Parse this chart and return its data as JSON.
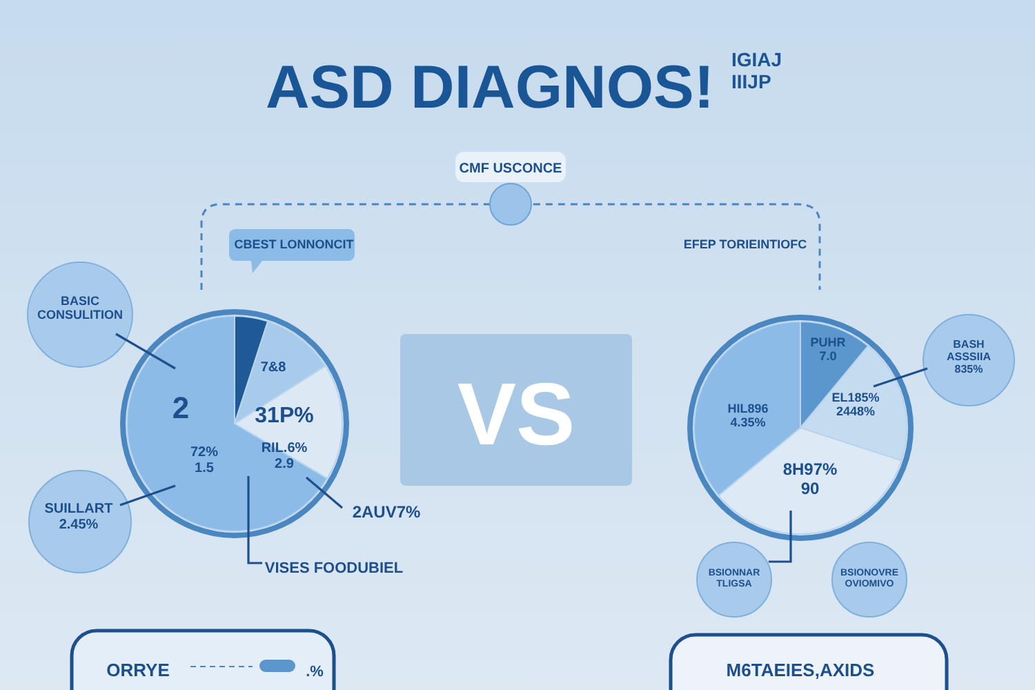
{
  "chart_data": [
    {
      "type": "pie",
      "title": "ASD DIAGNOS!",
      "categories": [
        null,
        null,
        null,
        null
      ],
      "values": [
        5,
        11,
        17.5,
        66.5
      ],
      "colors": [
        "#1f5a96",
        "#a8cbec",
        "#dce9f5",
        "#8bbbe6"
      ],
      "annotations": [
        "CMF USCONCE",
        "CBEST LONNONCIT",
        "BASIC\nCONSULITION",
        "2",
        "7&8",
        "31P%",
        "72%\n1.5",
        "RIL.6%\n2.9",
        "2AUV7%",
        "SUILLART\n2.45%",
        "VISES FOODUBIEL",
        "VS",
        "ORRYE",
        ".%"
      ]
    },
    {
      "type": "pie",
      "subtitle": "IGIAJ\nIIIJP",
      "categories": [
        null,
        null,
        null,
        null
      ],
      "values": [
        11,
        19,
        34,
        36
      ],
      "colors": [
        "#5b96cc",
        "#c5dcf0",
        "#dde9f5",
        "#8bbbe6"
      ],
      "annotations": [
        "EFEP TORIEINTIOFC",
        "PUHR\n7.0",
        "EL185%\n2448%",
        "HIL896\n4.35%",
        "8H97%\n90",
        "BASH\nASSSIIA\n835%",
        "BSIONNAR\nTLIGSA",
        "BSIONOVRE\nOVIOMIVO",
        "M6TAEIES,AXIDS"
      ]
    }
  ]
}
